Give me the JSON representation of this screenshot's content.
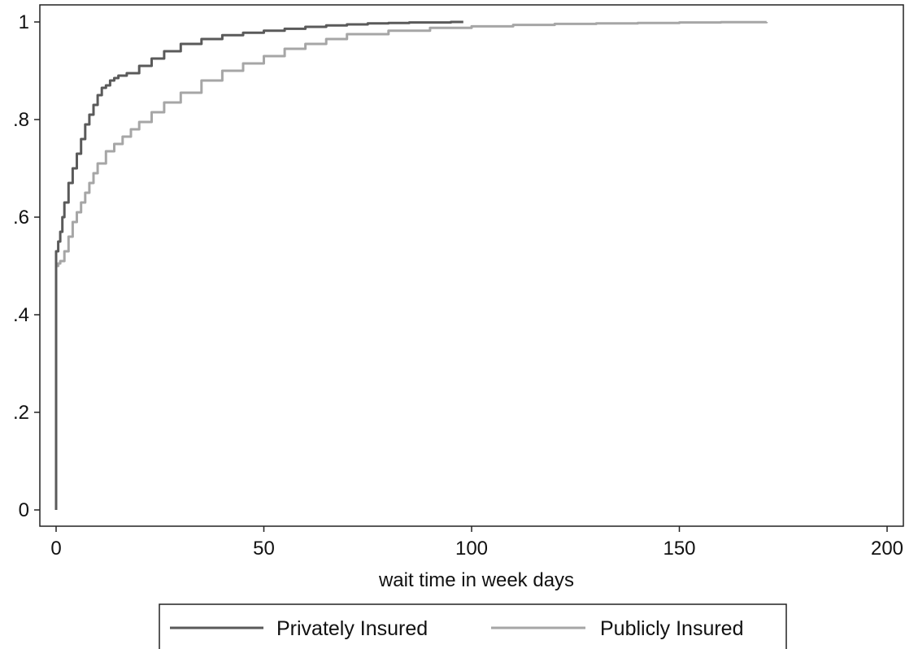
{
  "chart_data": {
    "type": "line",
    "title": "",
    "xlabel": "wait time in week days",
    "ylabel": "",
    "xlim": [
      0,
      200
    ],
    "ylim": [
      0,
      1
    ],
    "x_ticks": [
      0,
      50,
      100,
      150,
      200
    ],
    "x_tick_labels": [
      "0",
      "50",
      "100",
      "150",
      "200"
    ],
    "y_ticks": [
      0,
      0.2,
      0.4,
      0.6,
      0.8,
      1
    ],
    "y_tick_labels": [
      "0",
      ".2",
      ".4",
      ".6",
      ".8",
      "1"
    ],
    "grid": false,
    "legend_position": "bottom",
    "series": [
      {
        "name": "Privately Insured",
        "color": "#5a5a5a",
        "x": [
          0,
          0,
          0.5,
          1,
          1.5,
          2,
          3,
          4,
          5,
          6,
          7,
          8,
          9,
          10,
          11,
          12,
          13,
          14,
          15,
          17,
          20,
          23,
          26,
          30,
          35,
          40,
          45,
          50,
          55,
          60,
          65,
          70,
          75,
          80,
          85,
          90,
          95,
          98
        ],
        "y": [
          0,
          0.53,
          0.55,
          0.57,
          0.6,
          0.63,
          0.67,
          0.7,
          0.73,
          0.76,
          0.79,
          0.81,
          0.83,
          0.85,
          0.865,
          0.87,
          0.88,
          0.885,
          0.89,
          0.895,
          0.91,
          0.925,
          0.94,
          0.955,
          0.965,
          0.973,
          0.978,
          0.982,
          0.986,
          0.99,
          0.993,
          0.995,
          0.997,
          0.998,
          0.999,
          0.999,
          1.0,
          1.0
        ]
      },
      {
        "name": "Publicly Insured",
        "color": "#a6a6a6",
        "x": [
          0,
          0,
          0.5,
          1,
          2,
          3,
          4,
          5,
          6,
          7,
          8,
          9,
          10,
          12,
          14,
          16,
          18,
          20,
          23,
          26,
          30,
          35,
          40,
          45,
          50,
          55,
          60,
          65,
          70,
          80,
          90,
          100,
          110,
          120,
          130,
          140,
          150,
          160,
          171
        ],
        "y": [
          0,
          0.5,
          0.505,
          0.51,
          0.53,
          0.56,
          0.59,
          0.61,
          0.63,
          0.65,
          0.67,
          0.69,
          0.71,
          0.735,
          0.75,
          0.765,
          0.78,
          0.795,
          0.815,
          0.835,
          0.855,
          0.88,
          0.9,
          0.915,
          0.93,
          0.945,
          0.955,
          0.965,
          0.975,
          0.982,
          0.988,
          0.991,
          0.994,
          0.996,
          0.997,
          0.998,
          0.999,
          0.9995,
          1.0
        ]
      }
    ]
  }
}
